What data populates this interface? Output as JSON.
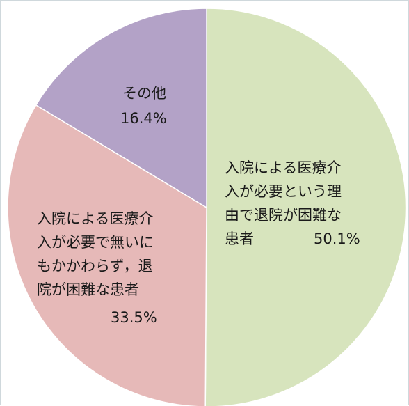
{
  "chart_data": {
    "type": "pie",
    "start": "12 o'clock",
    "direction": "clockwise",
    "legend": "none",
    "slices": [
      {
        "label_lines": [
          "入院による医療介",
          "入が必要という理",
          "由で退院が困難な",
          "患者"
        ],
        "value_text": "50.1%",
        "value": 50.1,
        "color": "#d7e4bd"
      },
      {
        "label_lines": [
          "入院による医療介",
          "入が必要で無いに",
          "もかかわらず，退",
          "院が困難な患者"
        ],
        "value_text": "33.5%",
        "value": 33.5,
        "color": "#e6b9b8"
      },
      {
        "label_lines": [
          "その他"
        ],
        "value_text": "16.4%",
        "value": 16.4,
        "color": "#b3a2c7"
      }
    ]
  }
}
